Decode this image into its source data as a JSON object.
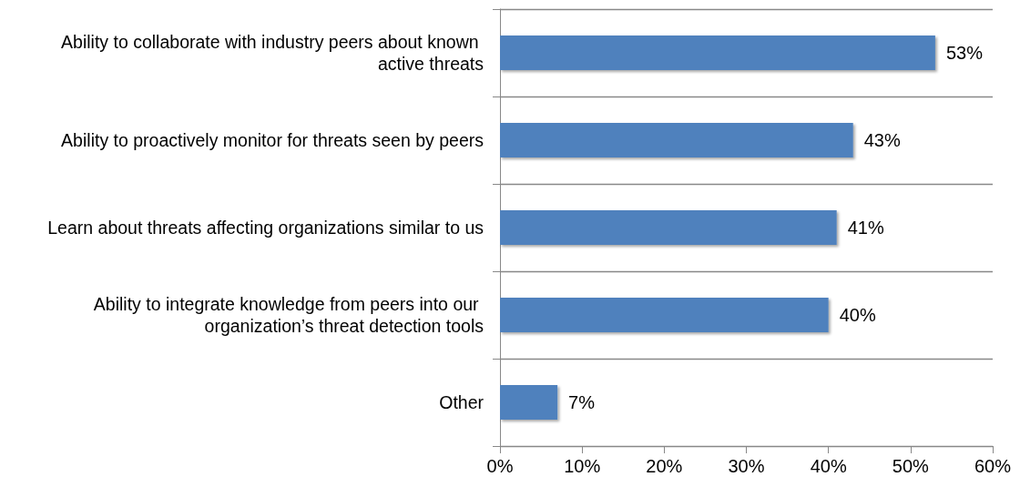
{
  "chart_data": {
    "type": "bar",
    "orientation": "horizontal",
    "categories": [
      "Ability to collaborate with industry peers about known active threats",
      "Ability to proactively monitor for threats seen by peers",
      "Learn about threats affecting organizations similar to us",
      "Ability to integrate knowledge from peers into our organization’s threat detection tools",
      "Other"
    ],
    "values": [
      53,
      43,
      41,
      40,
      7
    ],
    "value_labels": [
      "53%",
      "43%",
      "41%",
      "40%",
      "7%"
    ],
    "color": "#4f81bd",
    "xlim": [
      0,
      60
    ],
    "xticks": [
      {
        "value": 0,
        "label": "0%"
      },
      {
        "value": 10,
        "label": "10%"
      },
      {
        "value": 20,
        "label": "20%"
      },
      {
        "value": 30,
        "label": "30%"
      },
      {
        "value": 40,
        "label": "40%"
      },
      {
        "value": 50,
        "label": "50%"
      },
      {
        "value": 60,
        "label": "60%"
      }
    ],
    "grid": "y"
  }
}
